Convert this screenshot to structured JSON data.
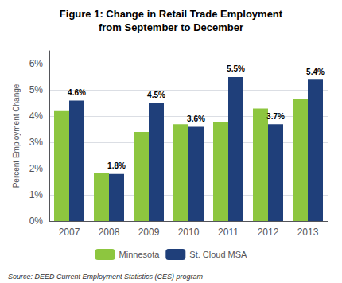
{
  "chart_data": {
    "type": "bar",
    "title": "Figure 1: Change in Retail Trade Employment",
    "subtitle": "from September to December",
    "y_label": "Percent Employment Change",
    "annotations": [
      "Source: DEED Current Employment Statistics (CES) program"
    ],
    "categories": [
      "2007",
      "2008",
      "2009",
      "2010",
      "2011",
      "2012",
      "2013"
    ],
    "series": [
      {
        "name": "Minnesota",
        "color": "#8DC63F",
        "values": [
          4.2,
          1.85,
          3.4,
          3.7,
          3.8,
          4.3,
          4.65
        ]
      },
      {
        "name": "St. Cloud MSA",
        "color": "#1F3F7A",
        "values": [
          4.6,
          1.8,
          4.5,
          3.6,
          5.5,
          3.7,
          5.4
        ],
        "value_labels": [
          "4.6%",
          "1.8%",
          "4.5%",
          "3.6%",
          "5.5%",
          "3.7%",
          "5.4%"
        ]
      }
    ],
    "ylim": [
      0,
      6.5
    ],
    "yticks": [
      {
        "value": 0,
        "label": "0%"
      },
      {
        "value": 1,
        "label": "1%"
      },
      {
        "value": 2,
        "label": "2%"
      },
      {
        "value": 3,
        "label": "3%"
      },
      {
        "value": 4,
        "label": "4%"
      },
      {
        "value": 5,
        "label": "5%"
      },
      {
        "value": 6,
        "label": "6%"
      }
    ],
    "grid": true,
    "legend": "bottom",
    "data_labels": true
  }
}
